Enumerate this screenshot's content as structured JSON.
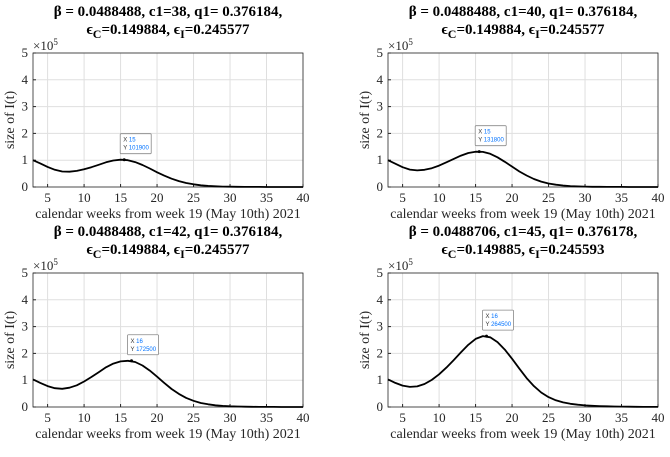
{
  "chart_data": [
    {
      "type": "line",
      "title_line1": "β = 0.0488488, c1=38, q1= 0.376184,",
      "eps_c": "=0.149884",
      "eps_i": "=0.245577",
      "xlabel": "calendar weeks from week 19 (May 10th) 2021",
      "ylabel": "size of I(t)",
      "y_exponent": "×10",
      "y_exponent_power": "5",
      "xlim": [
        3,
        40
      ],
      "ylim": [
        0,
        5
      ],
      "xticks": [
        5,
        10,
        15,
        20,
        25,
        30,
        35,
        40
      ],
      "yticks": [
        0,
        1,
        2,
        3,
        4,
        5
      ],
      "grid": true,
      "datatip": {
        "x": 15,
        "y": 101900,
        "x_label": "X",
        "y_label": "Y"
      },
      "x_start": 3,
      "values": [
        1.0,
        0.88,
        0.75,
        0.64,
        0.58,
        0.57,
        0.6,
        0.66,
        0.74,
        0.83,
        0.92,
        0.99,
        1.019,
        1.0,
        0.93,
        0.82,
        0.69,
        0.55,
        0.42,
        0.31,
        0.22,
        0.15,
        0.1,
        0.065,
        0.04,
        0.025,
        0.015,
        0.01,
        0.006,
        0.004,
        0.003,
        0.002,
        0.001,
        0,
        0,
        0,
        0,
        0
      ]
    },
    {
      "type": "line",
      "title_line1": "β = 0.0488488, c1=40, q1= 0.376184,",
      "eps_c": "=0.149884",
      "eps_i": "=0.245577",
      "xlabel": "calendar weeks from week 19 (May 10th) 2021",
      "ylabel": "size of I(t)",
      "y_exponent": "×10",
      "y_exponent_power": "5",
      "xlim": [
        3,
        40
      ],
      "ylim": [
        0,
        5
      ],
      "xticks": [
        5,
        10,
        15,
        20,
        25,
        30,
        35,
        40
      ],
      "yticks": [
        0,
        1,
        2,
        3,
        4,
        5
      ],
      "grid": true,
      "datatip": {
        "x": 15,
        "y": 131800,
        "x_label": "X",
        "y_label": "Y"
      },
      "x_start": 3,
      "values": [
        1.0,
        0.87,
        0.74,
        0.65,
        0.62,
        0.64,
        0.7,
        0.8,
        0.92,
        1.05,
        1.17,
        1.27,
        1.318,
        1.31,
        1.24,
        1.11,
        0.94,
        0.76,
        0.58,
        0.43,
        0.3,
        0.2,
        0.13,
        0.085,
        0.055,
        0.035,
        0.022,
        0.014,
        0.009,
        0.006,
        0.004,
        0.003,
        0.002,
        0.001,
        0,
        0,
        0,
        0
      ]
    },
    {
      "type": "line",
      "title_line1": "β = 0.0488488, c1=42, q1= 0.376184,",
      "eps_c": "=0.149884",
      "eps_i": "=0.245577",
      "xlabel": "calendar weeks from week 19 (May 10th) 2021",
      "ylabel": "size of I(t)",
      "y_exponent": "×10",
      "y_exponent_power": "5",
      "xlim": [
        3,
        40
      ],
      "ylim": [
        0,
        5
      ],
      "xticks": [
        5,
        10,
        15,
        20,
        25,
        30,
        35,
        40
      ],
      "yticks": [
        0,
        1,
        2,
        3,
        4,
        5
      ],
      "grid": true,
      "datatip": {
        "x": 16,
        "y": 172500,
        "x_label": "X",
        "y_label": "Y"
      },
      "x_start": 3,
      "values": [
        1.03,
        0.9,
        0.78,
        0.7,
        0.68,
        0.72,
        0.81,
        0.95,
        1.12,
        1.3,
        1.48,
        1.62,
        1.7,
        1.725,
        1.68,
        1.55,
        1.36,
        1.13,
        0.89,
        0.67,
        0.49,
        0.34,
        0.23,
        0.15,
        0.1,
        0.065,
        0.042,
        0.027,
        0.018,
        0.012,
        0.008,
        0.005,
        0.003,
        0.002,
        0.001,
        0,
        0,
        0
      ]
    },
    {
      "type": "line",
      "title_line1": "β = 0.0488706, c1=45, q1= 0.376178,",
      "eps_c": "=0.149885",
      "eps_i": "=0.245593",
      "xlabel": "calendar weeks from week 19 (May 10th) 2021",
      "ylabel": "size of I(t)",
      "y_exponent": "×10",
      "y_exponent_power": "5",
      "xlim": [
        3,
        40
      ],
      "ylim": [
        0,
        5
      ],
      "xticks": [
        5,
        10,
        15,
        20,
        25,
        30,
        35,
        40
      ],
      "yticks": [
        0,
        1,
        2,
        3,
        4,
        5
      ],
      "grid": true,
      "datatip": {
        "x": 16,
        "y": 264500,
        "x_label": "X",
        "y_label": "Y"
      },
      "x_start": 3,
      "values": [
        1.03,
        0.9,
        0.8,
        0.75,
        0.77,
        0.86,
        1.01,
        1.22,
        1.47,
        1.75,
        2.04,
        2.32,
        2.54,
        2.645,
        2.6,
        2.42,
        2.14,
        1.8,
        1.43,
        1.08,
        0.78,
        0.54,
        0.37,
        0.25,
        0.17,
        0.12,
        0.085,
        0.06,
        0.045,
        0.035,
        0.027,
        0.02,
        0.015,
        0.011,
        0.008,
        0.005,
        0.003,
        0.002
      ]
    }
  ],
  "colors": {
    "line": "#000000",
    "grid": "#dfdfdf",
    "axis": "#262626",
    "tip_value": "#0072ff"
  }
}
